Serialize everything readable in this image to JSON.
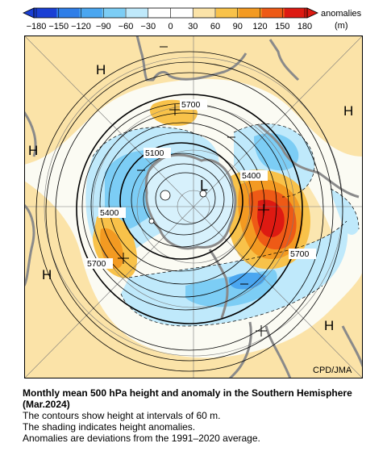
{
  "colorbar": {
    "label": "anomalies",
    "unit": "(m)",
    "ticks": [
      "−180",
      "−150",
      "−120",
      "−90",
      "−60",
      "−30",
      "0",
      "30",
      "60",
      "90",
      "120",
      "150",
      "180"
    ],
    "colors": [
      "#1a3fd4",
      "#2f7ee8",
      "#4aa6f0",
      "#7ccdf5",
      "#bfe9fb",
      "#ffffff",
      "#ffffff",
      "#fbe3a8",
      "#f8c24a",
      "#f39a22",
      "#ee5a16",
      "#dd1a12"
    ]
  },
  "map": {
    "contour_labels": [
      "5700",
      "5100",
      "5400",
      "5400",
      "5700",
      "5700"
    ],
    "high_labels": [
      "H",
      "H",
      "H",
      "H",
      "H"
    ],
    "low_label": "L",
    "credit": "CPD/JMA"
  },
  "caption": {
    "title": "Monthly mean 500 hPa height and anomaly in the Southern Hemisphere (Mar.2024)",
    "lines": [
      "The contours show height at intervals of 60 m.",
      "The shading indicates height anomalies.",
      "Anomalies are deviations from the 1991–2020 average."
    ]
  }
}
